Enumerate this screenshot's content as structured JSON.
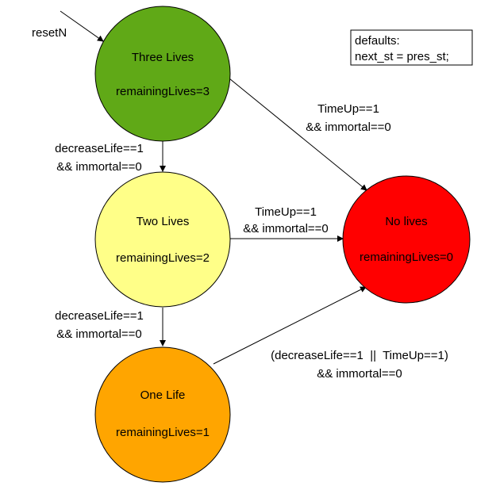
{
  "states": [
    {
      "id": "three",
      "name": "Three Lives",
      "output": "remainingLives=3",
      "color": "#60a917"
    },
    {
      "id": "two",
      "name": "Two Lives",
      "output": "remainingLives=2",
      "color": "#ffff88"
    },
    {
      "id": "one",
      "name": "One Life",
      "output": "remainingLives=1",
      "color": "#ffa500"
    },
    {
      "id": "none",
      "name": "No lives",
      "output": "remainingLives=0",
      "color": "#ff0000"
    }
  ],
  "reset_label": "resetN",
  "defaults_box": {
    "line1": "defaults:",
    "line2": "next_st = pres_st;"
  },
  "transitions": {
    "three_to_two": {
      "line1": "decreaseLife==1",
      "line2": "&& immortal==0"
    },
    "two_to_one": {
      "line1": "decreaseLife==1",
      "line2": "&& immortal==0"
    },
    "three_to_none": {
      "line1": "TimeUp==1",
      "line2": "&& immortal==0"
    },
    "two_to_none": {
      "line1": "TimeUp==1",
      "line2": "&& immortal==0"
    },
    "one_to_none": {
      "line1": "(decreaseLife==1  ||  TimeUp==1)",
      "line2": "&& immortal==0"
    }
  }
}
